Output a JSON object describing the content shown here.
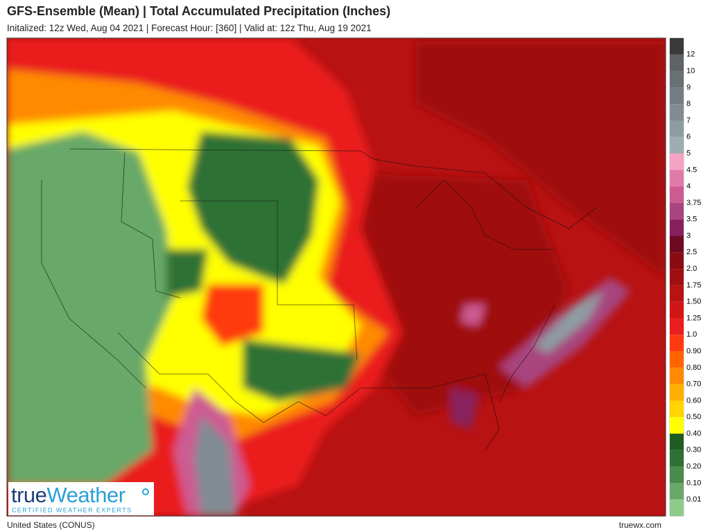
{
  "header": {
    "title": "GFS-Ensemble (Mean) | Total Accumulated Precipitation (Inches)",
    "subtitle": "Initalized: 12z Wed, Aug 04 2021 | Forecast Hour: [360] | Valid at: 12z Thu, Aug 19 2021"
  },
  "legend": {
    "items": [
      {
        "label": "12",
        "color": "#5d6366"
      },
      {
        "label": "10",
        "color": "#687074"
      },
      {
        "label": "9",
        "color": "#737e83"
      },
      {
        "label": "8",
        "color": "#808c92"
      },
      {
        "label": "7",
        "color": "#8e9ba1"
      },
      {
        "label": "6",
        "color": "#9eadb3"
      },
      {
        "label": "5",
        "color": "#f4a3c4"
      },
      {
        "label": "4.5",
        "color": "#e07aa8"
      },
      {
        "label": "4",
        "color": "#cc5b92"
      },
      {
        "label": "3.75",
        "color": "#a8447f"
      },
      {
        "label": "3.5",
        "color": "#88205f"
      },
      {
        "label": "3",
        "color": "#6e0a22"
      },
      {
        "label": "2.5",
        "color": "#8a0c12"
      },
      {
        "label": "2.0",
        "color": "#a00e10"
      },
      {
        "label": "1.75",
        "color": "#b81212"
      },
      {
        "label": "1.50",
        "color": "#d21616"
      },
      {
        "label": "1.25",
        "color": "#ea1e1e"
      },
      {
        "label": "1.0",
        "color": "#ff3a10"
      },
      {
        "label": "0.90",
        "color": "#ff6400"
      },
      {
        "label": "0.80",
        "color": "#ff8a00"
      },
      {
        "label": "0.70",
        "color": "#ffae00"
      },
      {
        "label": "0.60",
        "color": "#ffd400"
      },
      {
        "label": "0.50",
        "color": "#ffff00"
      },
      {
        "label": "0.40",
        "color": "#1f5c22"
      },
      {
        "label": "0.30",
        "color": "#2f7134"
      },
      {
        "label": "0.20",
        "color": "#4a8a4c"
      },
      {
        "label": "0.10",
        "color": "#68a868"
      },
      {
        "label": "0.01",
        "color": "#8ccb8a"
      }
    ]
  },
  "logo": {
    "brand_prefix": "true",
    "brand_suffix": "Weather",
    "tagline": "CERTIFIED WEATHER EXPERTS"
  },
  "footer": {
    "region": "United States (CONUS)",
    "site": "truewx.com"
  }
}
